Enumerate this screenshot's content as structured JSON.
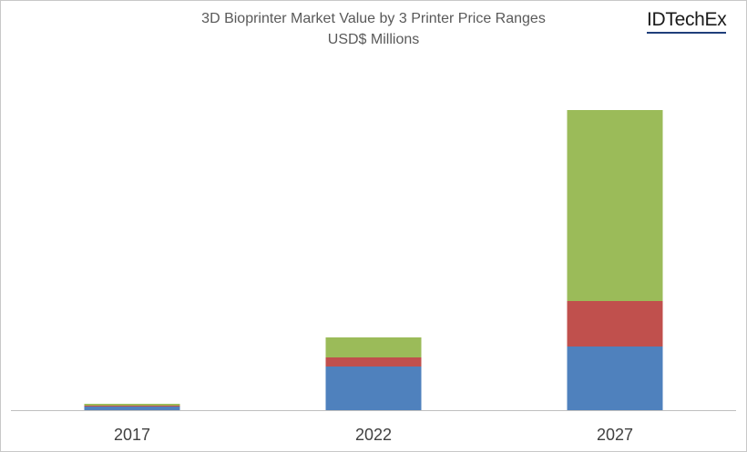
{
  "chart_data": {
    "type": "bar",
    "stacked": true,
    "title": "3D Bioprinter Market Value by 3 Printer Price Ranges",
    "subtitle": "USD$ Millions",
    "categories": [
      "2017",
      "2022",
      "2027"
    ],
    "series": [
      {
        "color": "#4f81bd",
        "values": [
          4,
          48,
          70
        ]
      },
      {
        "color": "#c0504d",
        "values": [
          1,
          10,
          50
        ]
      },
      {
        "color": "#9bbb59",
        "values": [
          2,
          22,
          210
        ]
      }
    ],
    "legend": "none",
    "grid": false,
    "ylim": [
      0,
      330
    ]
  },
  "branding": {
    "logo_text": "IDTechEx"
  }
}
